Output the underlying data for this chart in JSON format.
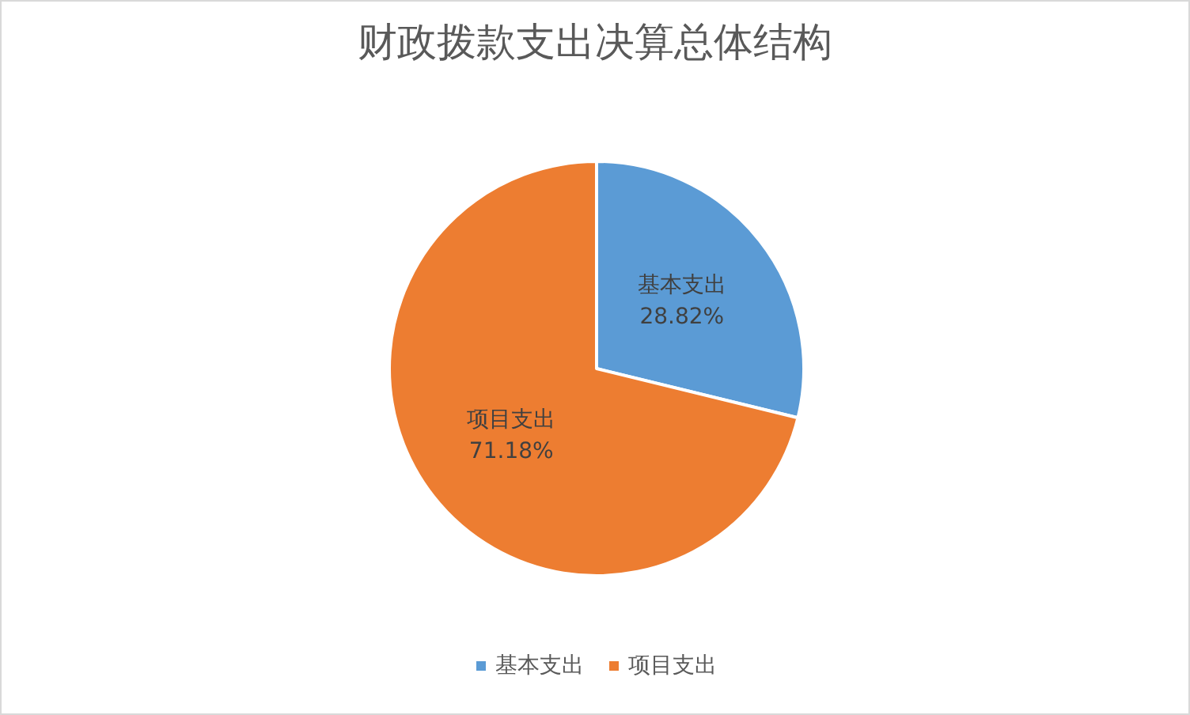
{
  "chart_data": {
    "type": "pie",
    "title": "财政拨款支出决算总体结构",
    "categories": [
      "基本支出",
      "项目支出"
    ],
    "values": [
      28.82,
      71.18
    ],
    "colors": [
      "#5b9bd5",
      "#ed7d31"
    ],
    "value_labels": [
      "28.82%",
      "71.18%"
    ],
    "legend": "bottom"
  }
}
